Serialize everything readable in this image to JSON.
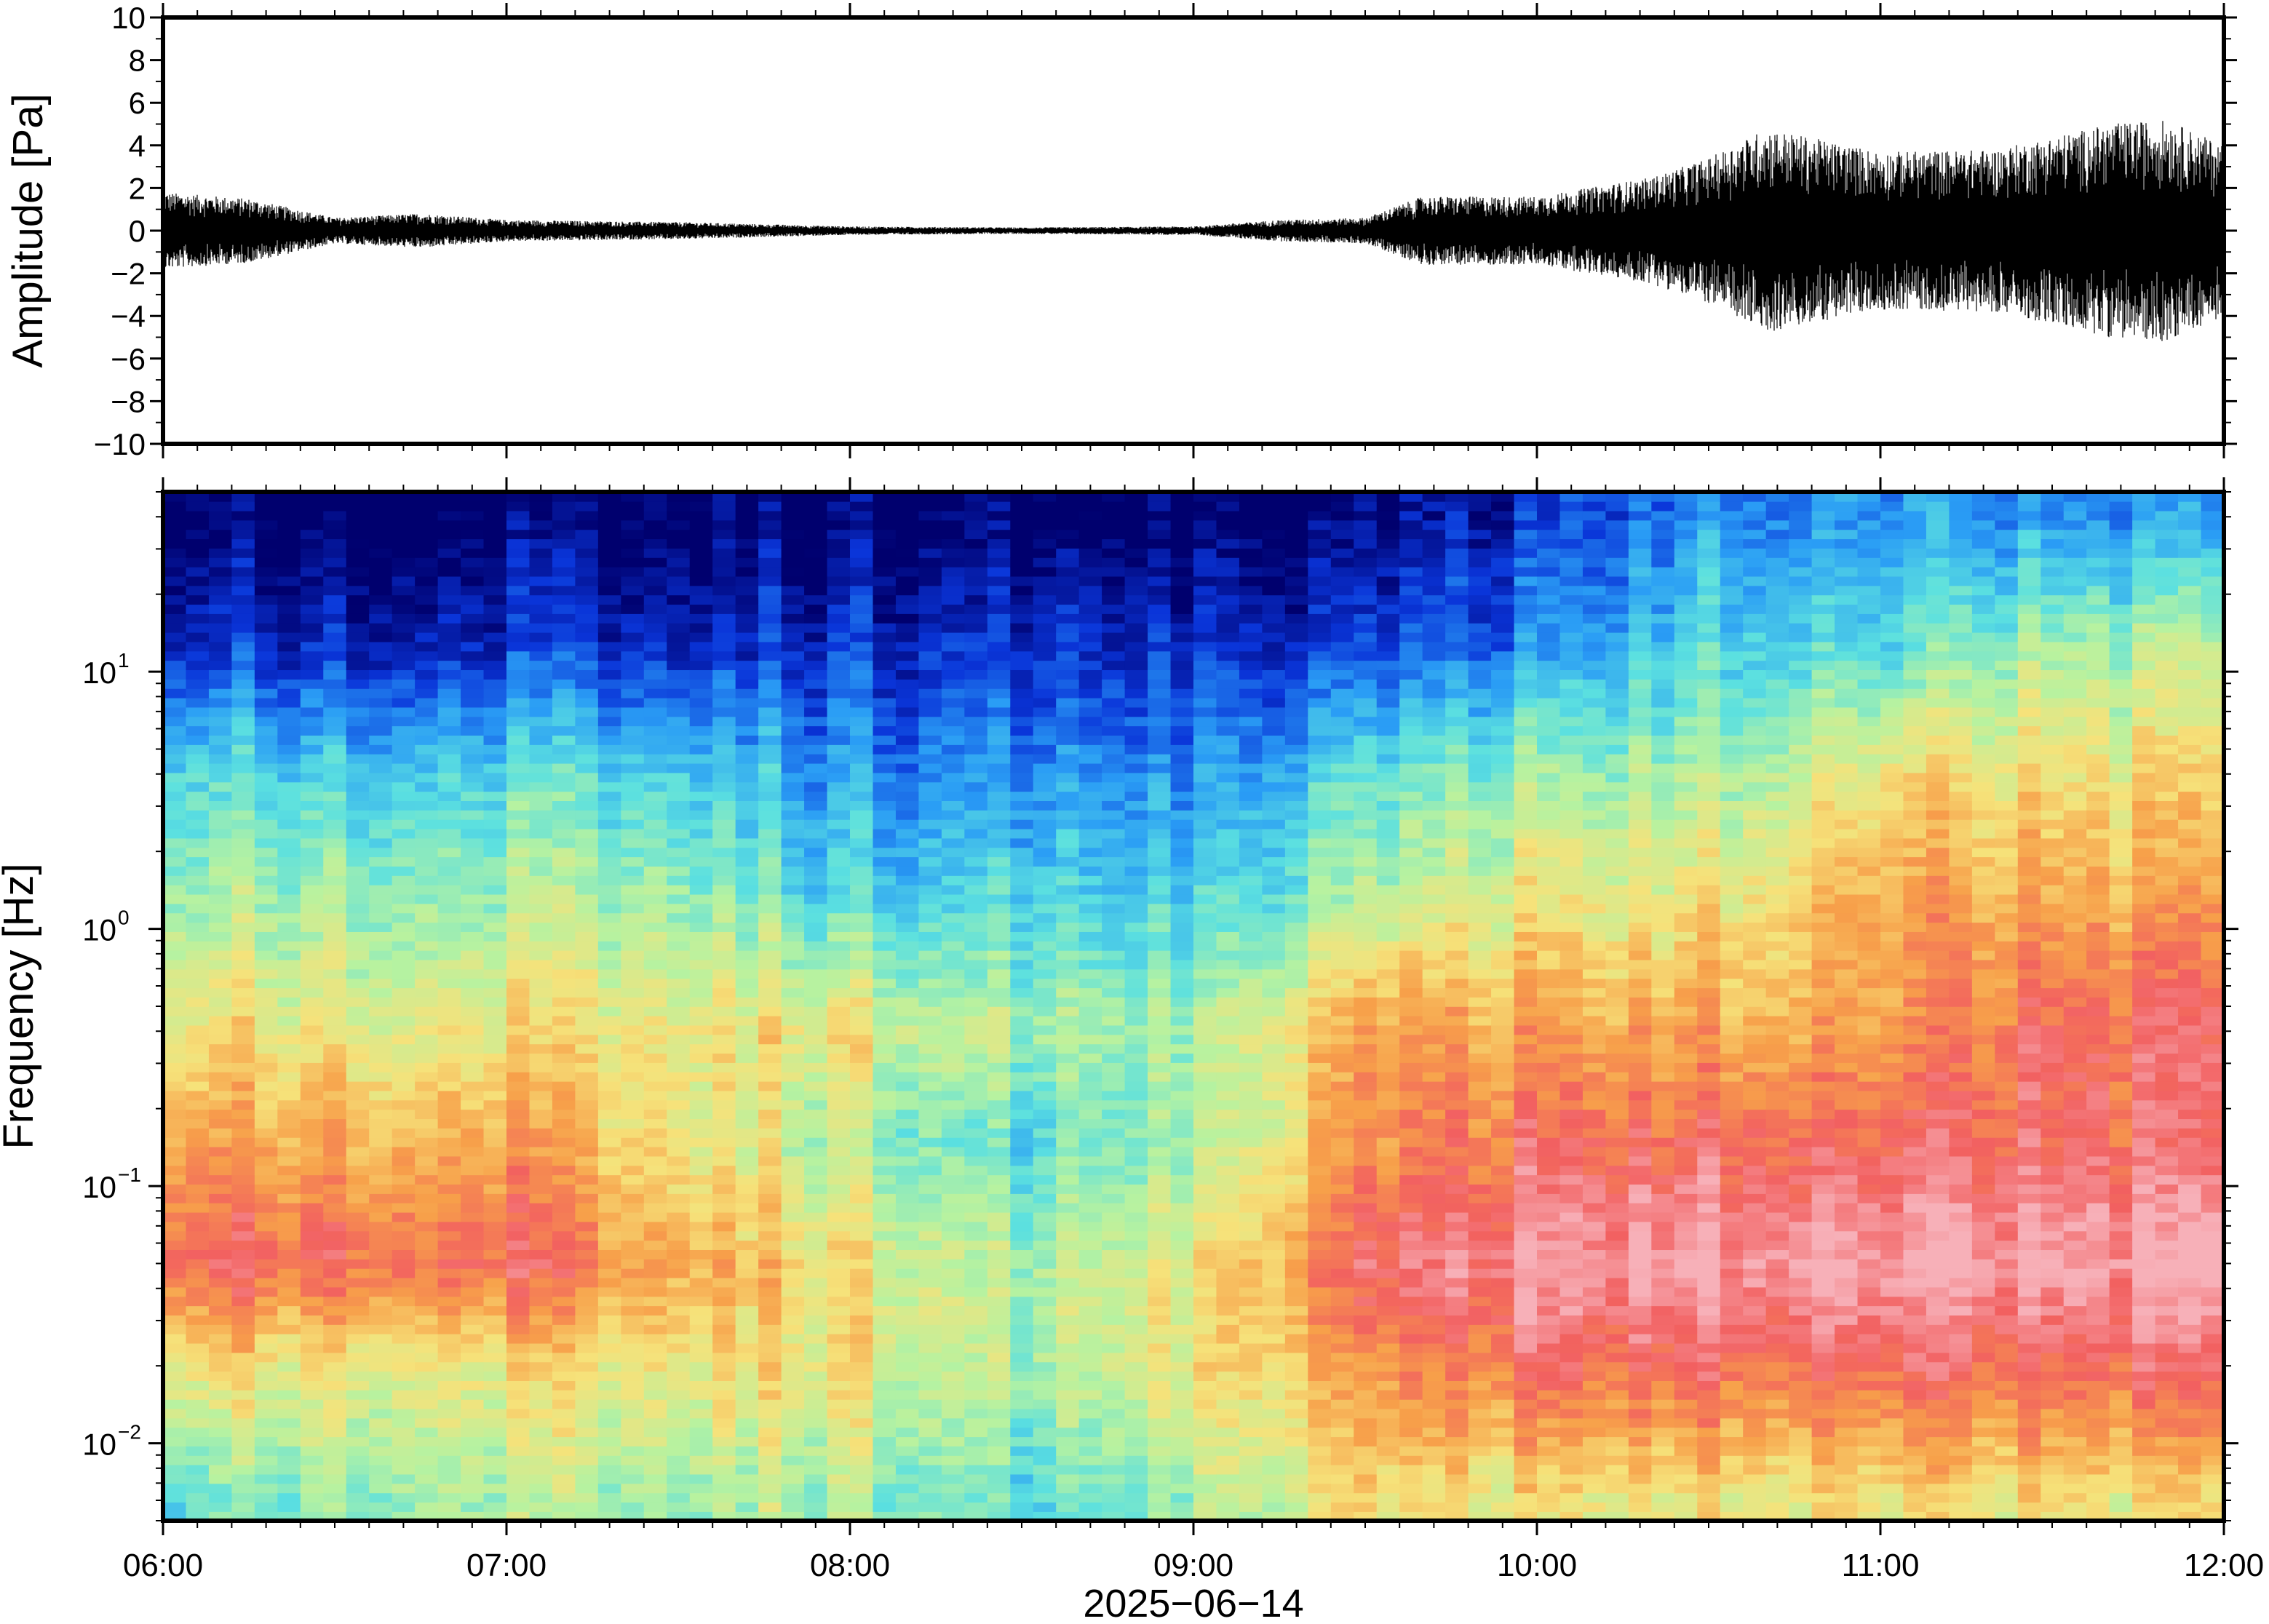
{
  "chart_data": [
    {
      "type": "line",
      "title": "",
      "xlabel": "",
      "ylabel": "Amplitude [Pa]",
      "xlim": [
        "06:00",
        "12:00"
      ],
      "ylim": [
        -10,
        10
      ],
      "y_ticks": [
        "10",
        "8",
        "6",
        "4",
        "2",
        "0",
        "−2",
        "−4",
        "−6",
        "−8",
        "−10"
      ],
      "y_tick_values": [
        10,
        8,
        6,
        4,
        2,
        0,
        -2,
        -4,
        -6,
        -8,
        -10
      ],
      "grid": false,
      "series": [
        {
          "envelope_time": [
            "06:00",
            "06:15",
            "06:30",
            "06:45",
            "07:00",
            "07:30",
            "08:00",
            "08:30",
            "09:00",
            "09:15",
            "09:30",
            "09:40",
            "10:00",
            "10:20",
            "10:30",
            "10:40",
            "11:00",
            "11:20",
            "11:40",
            "11:50",
            "12:00"
          ],
          "envelope_peak_pa": [
            1.8,
            1.5,
            0.6,
            0.8,
            0.5,
            0.4,
            0.2,
            0.15,
            0.2,
            0.5,
            0.6,
            1.6,
            1.6,
            2.5,
            3.4,
            4.8,
            3.7,
            3.8,
            5.0,
            5.2,
            4.0
          ]
        }
      ]
    },
    {
      "type": "heatmap",
      "title": "",
      "xlabel": "2025−06−14",
      "ylabel": "Frequency [Hz]",
      "yscale": "log",
      "ylim": [
        0.005,
        50
      ],
      "xlim": [
        "06:00",
        "12:00"
      ],
      "x_ticks": [
        "06:00",
        "07:00",
        "08:00",
        "09:00",
        "10:00",
        "11:00",
        "12:00"
      ],
      "y_ticks": [
        {
          "base": "10",
          "exp": "1",
          "value": 10
        },
        {
          "base": "10",
          "exp": "0",
          "value": 1
        },
        {
          "base": "10",
          "exp": "−1",
          "value": 0.1
        },
        {
          "base": "10",
          "exp": "−2",
          "value": 0.01
        }
      ],
      "colormap": "rainbow",
      "colormap_stops": [
        "#00006e",
        "#0a35d9",
        "#2a9df5",
        "#5be0e0",
        "#b7f2a0",
        "#f6e27a",
        "#f7a04a",
        "#f26060",
        "#f7b0b8"
      ],
      "time_bins": [
        "06:00",
        "06:30",
        "07:00",
        "07:30",
        "08:00",
        "08:30",
        "09:00",
        "09:30",
        "10:00",
        "10:30",
        "11:00",
        "11:30",
        "12:00"
      ],
      "freq_bins_hz": [
        0.006,
        0.02,
        0.05,
        0.15,
        0.4,
        1.2,
        4,
        12,
        40
      ],
      "level_index": [
        [
          3,
          5,
          7,
          6,
          5,
          4,
          3,
          1,
          0
        ],
        [
          4,
          5,
          7,
          6,
          5,
          4,
          3,
          1,
          0
        ],
        [
          4,
          5,
          7,
          6,
          5,
          4,
          3,
          1,
          0
        ],
        [
          4,
          5,
          6,
          5,
          5,
          4,
          3,
          1,
          0
        ],
        [
          4,
          5,
          5,
          4,
          5,
          3,
          2,
          1,
          0
        ],
        [
          3,
          4,
          4,
          3,
          4,
          3,
          2,
          1,
          0
        ],
        [
          4,
          5,
          5,
          4,
          4,
          3,
          2,
          1,
          0
        ],
        [
          5,
          6,
          7,
          6,
          6,
          4,
          3,
          1,
          0
        ],
        [
          5,
          7,
          8,
          7,
          6,
          5,
          4,
          2,
          1
        ],
        [
          5,
          7,
          8,
          7,
          6,
          5,
          4,
          3,
          2
        ],
        [
          5,
          7,
          8,
          7,
          6,
          6,
          5,
          3,
          2
        ],
        [
          5,
          7,
          8,
          7,
          7,
          6,
          5,
          4,
          2
        ],
        [
          5,
          7,
          8,
          7,
          7,
          6,
          5,
          4,
          2
        ]
      ]
    }
  ]
}
